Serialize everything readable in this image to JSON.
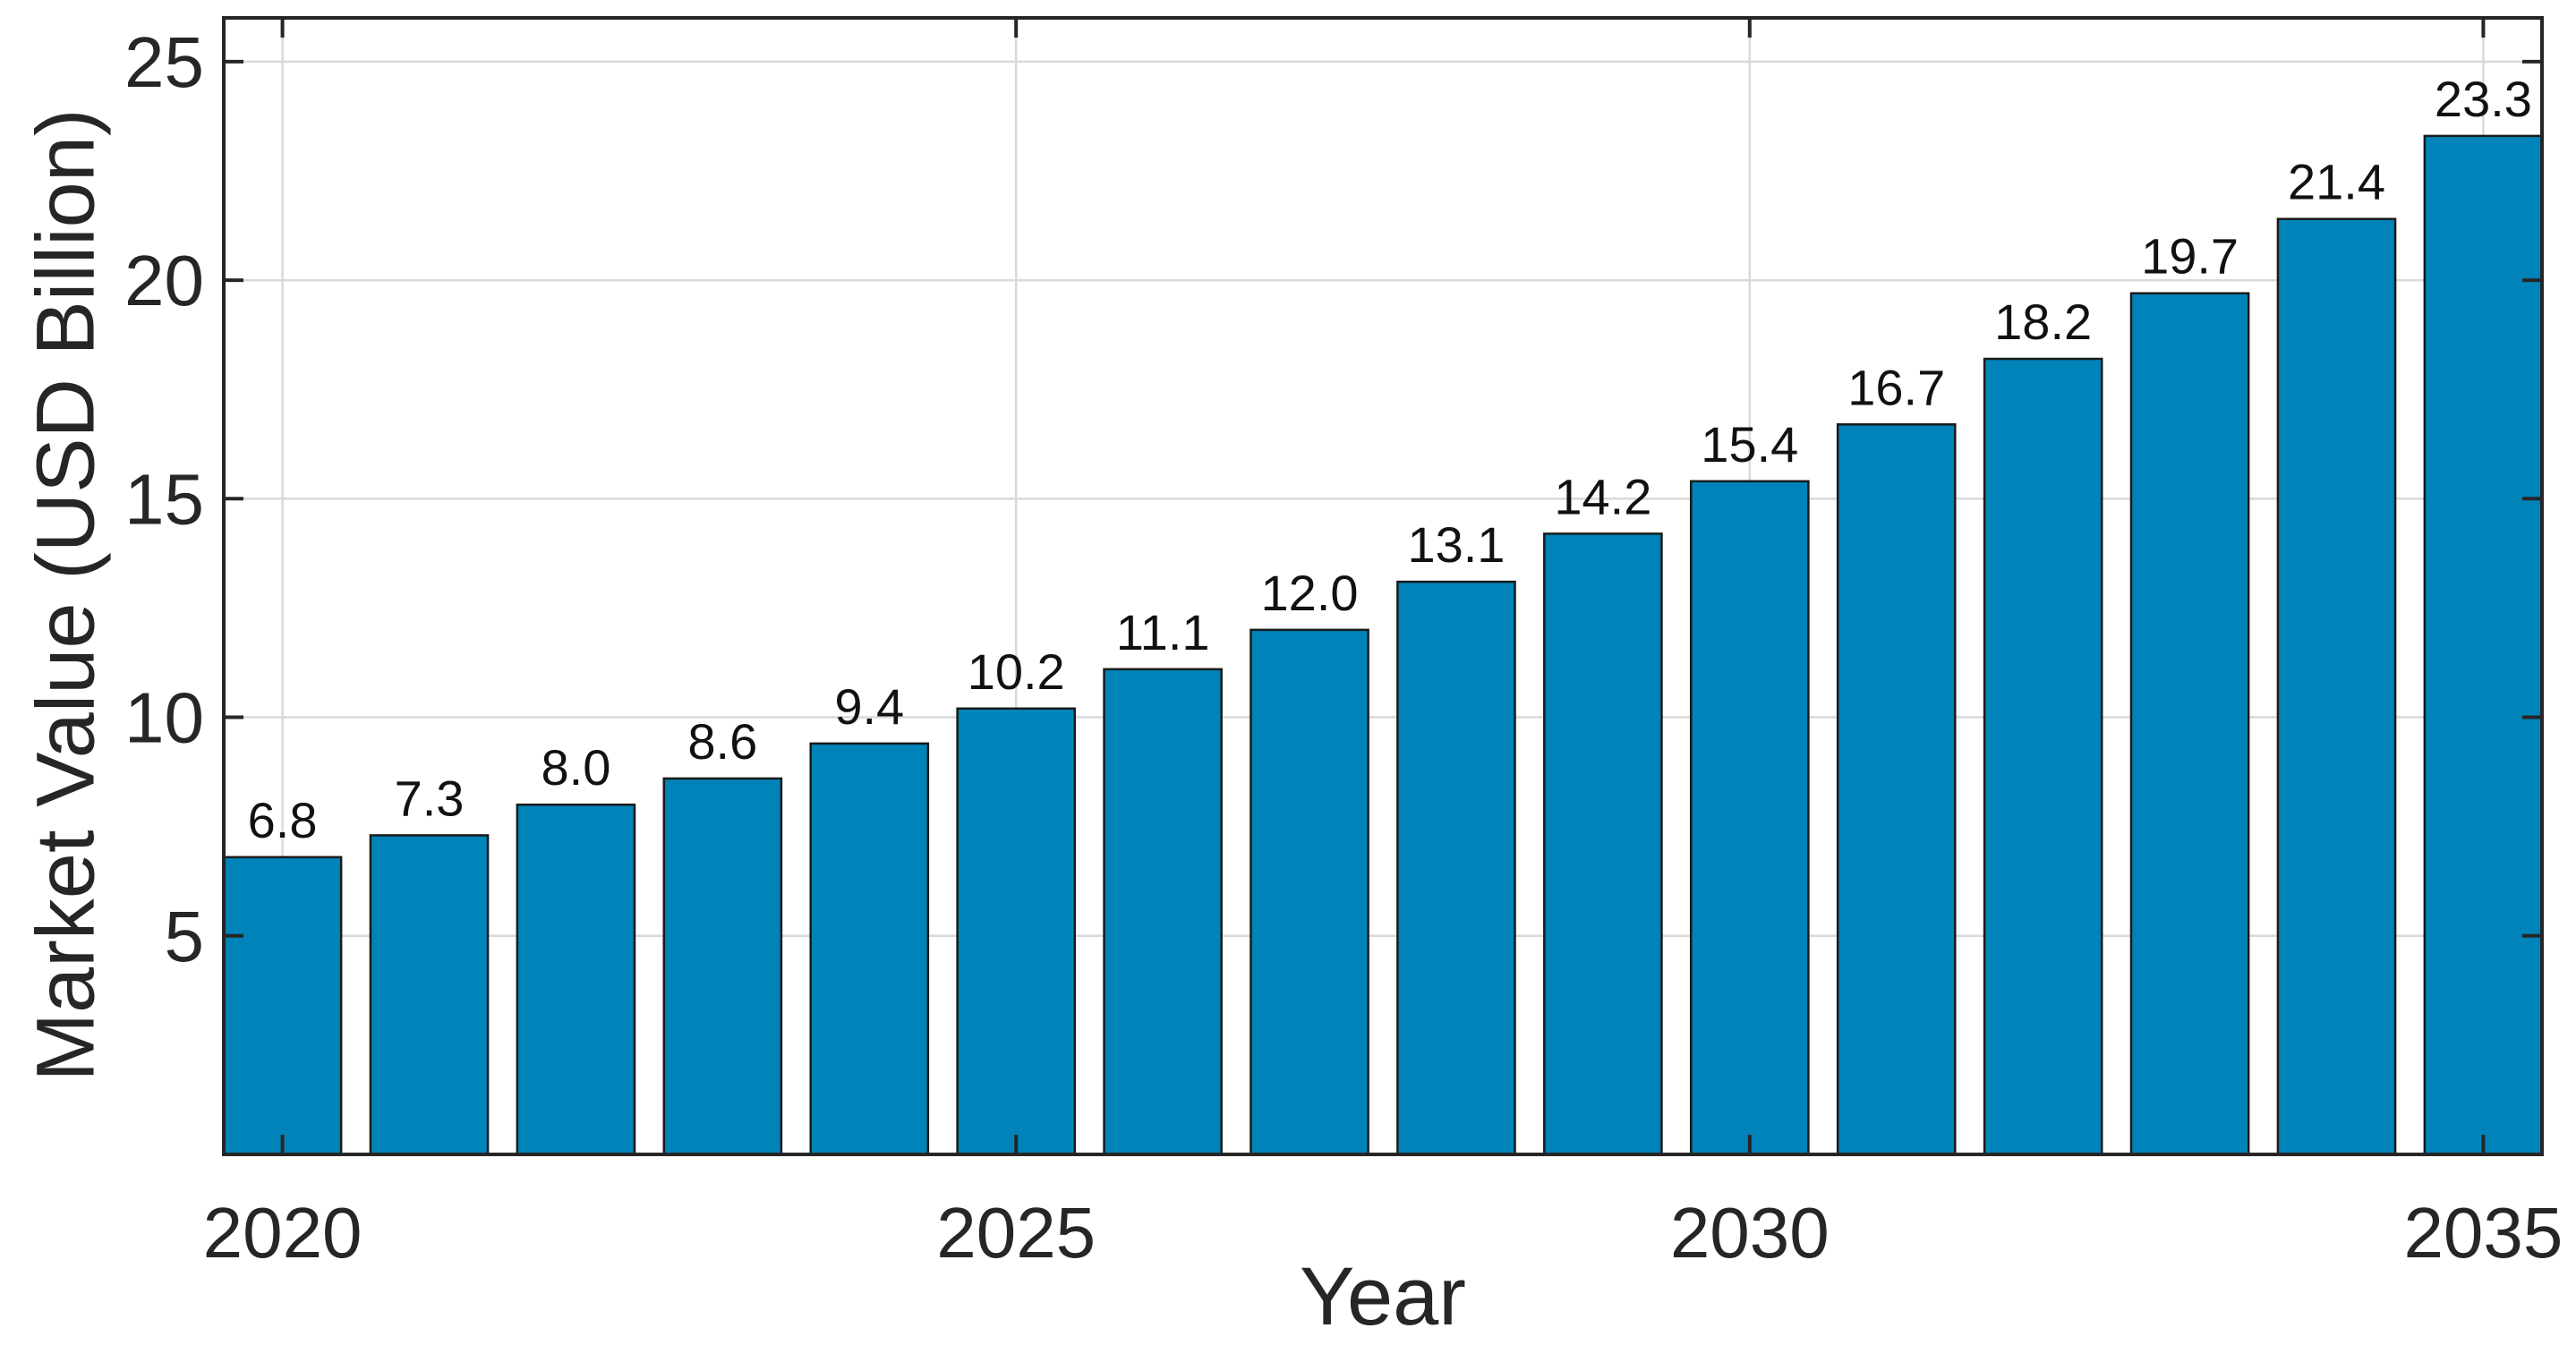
{
  "chart_data": {
    "type": "bar",
    "x": [
      2020,
      2021,
      2022,
      2023,
      2024,
      2025,
      2026,
      2027,
      2028,
      2029,
      2030,
      2031,
      2032,
      2033,
      2034,
      2035
    ],
    "values": [
      6.8,
      7.3,
      8.0,
      8.6,
      9.4,
      10.2,
      11.1,
      12.0,
      13.1,
      14.2,
      15.4,
      16.7,
      18.2,
      19.7,
      21.4,
      23.3
    ],
    "data_labels": [
      "6.8",
      "7.3",
      "8.0",
      "8.6",
      "9.4",
      "10.2",
      "11.1",
      "12.0",
      "13.1",
      "14.2",
      "15.4",
      "16.7",
      "18.2",
      "19.7",
      "21.4",
      "23.3"
    ],
    "xlabel": "Year",
    "ylabel": "Market Value (USD Billion)",
    "xticks": [
      "2020",
      "2025",
      "2030",
      "2035"
    ],
    "yticks": [
      "5",
      "10",
      "15",
      "20",
      "25"
    ],
    "xlim": [
      2019.6,
      2035.4
    ],
    "ylim": [
      0,
      26
    ],
    "grid": true,
    "bar_color": "#0083b8"
  }
}
